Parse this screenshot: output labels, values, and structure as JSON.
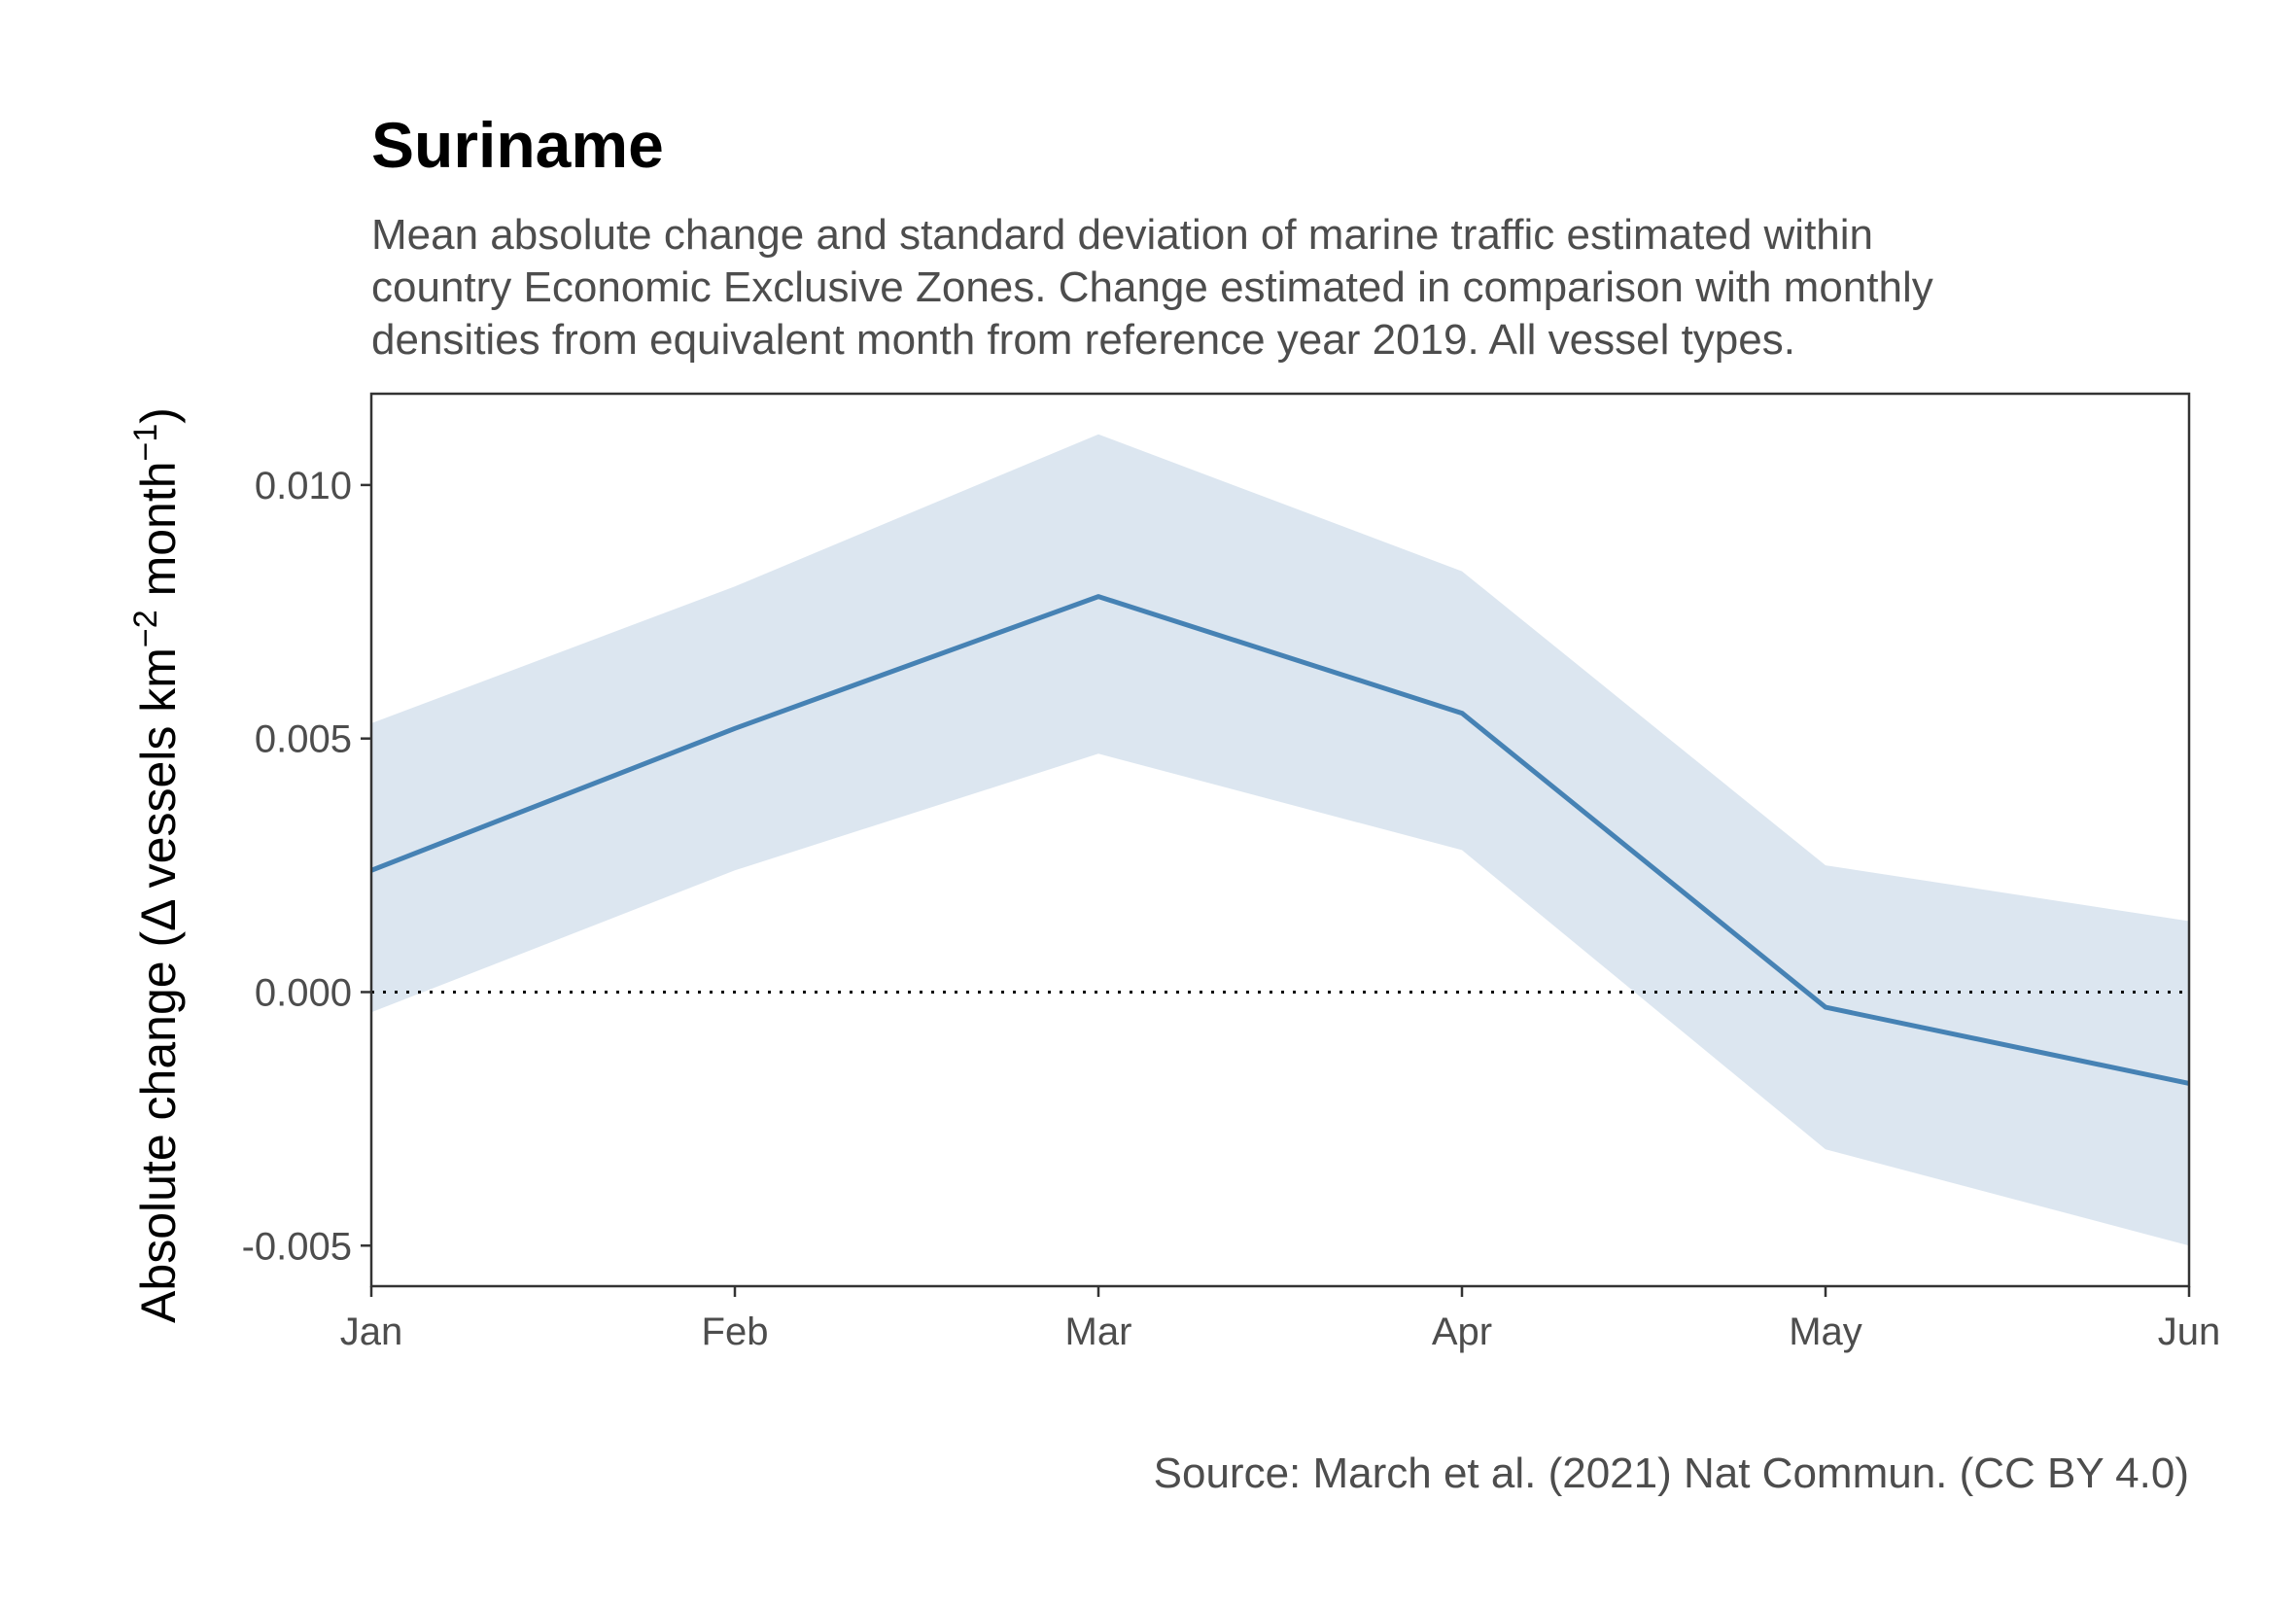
{
  "chart_data": {
    "type": "area",
    "title": "Suriname",
    "subtitle": [
      "Mean absolute change and standard deviation of marine traffic estimated within",
      "country Economic Exclusive Zones. Change estimated in comparison with monthly",
      "densities from equivalent month from reference year 2019. All vessel types."
    ],
    "ylabel": {
      "prefix": "Absolute change (",
      "delta": "Δ",
      "unit_a": " vessels km",
      "sup_a": "−2",
      "unit_b": " month",
      "sup_b": "−1",
      "suffix": ")"
    },
    "caption": "Source: March et al. (2021) Nat Commun. (CC BY 4.0)",
    "categories": [
      "Jan",
      "Feb",
      "Mar",
      "Apr",
      "May",
      "Jun"
    ],
    "x": [
      1,
      2,
      3,
      4,
      5,
      6
    ],
    "x_dates": [
      "2020-01-01",
      "2020-02-01",
      "2020-03-01",
      "2020-04-01",
      "2020-05-01",
      "2020-06-01"
    ],
    "mean": [
      0.0024,
      0.0052,
      0.0078,
      0.0055,
      -0.0003,
      -0.0018
    ],
    "sd_lower": [
      -0.0004,
      0.0024,
      0.0047,
      0.0028,
      -0.0031,
      -0.005
    ],
    "sd_upper": [
      0.0053,
      0.008,
      0.011,
      0.0083,
      0.0025,
      0.0014
    ],
    "ylim": [
      -0.0058,
      0.0118
    ],
    "yticks": [
      -0.005,
      0.0,
      0.005,
      0.01
    ],
    "ytick_labels": [
      "-0.005",
      "0.000",
      "0.005",
      "0.010"
    ],
    "reference_line": 0,
    "grid": false,
    "colors": {
      "line": "#4682b4",
      "ribbon": "#dce6f0",
      "reference": "#000000",
      "frame": "#333333"
    }
  }
}
